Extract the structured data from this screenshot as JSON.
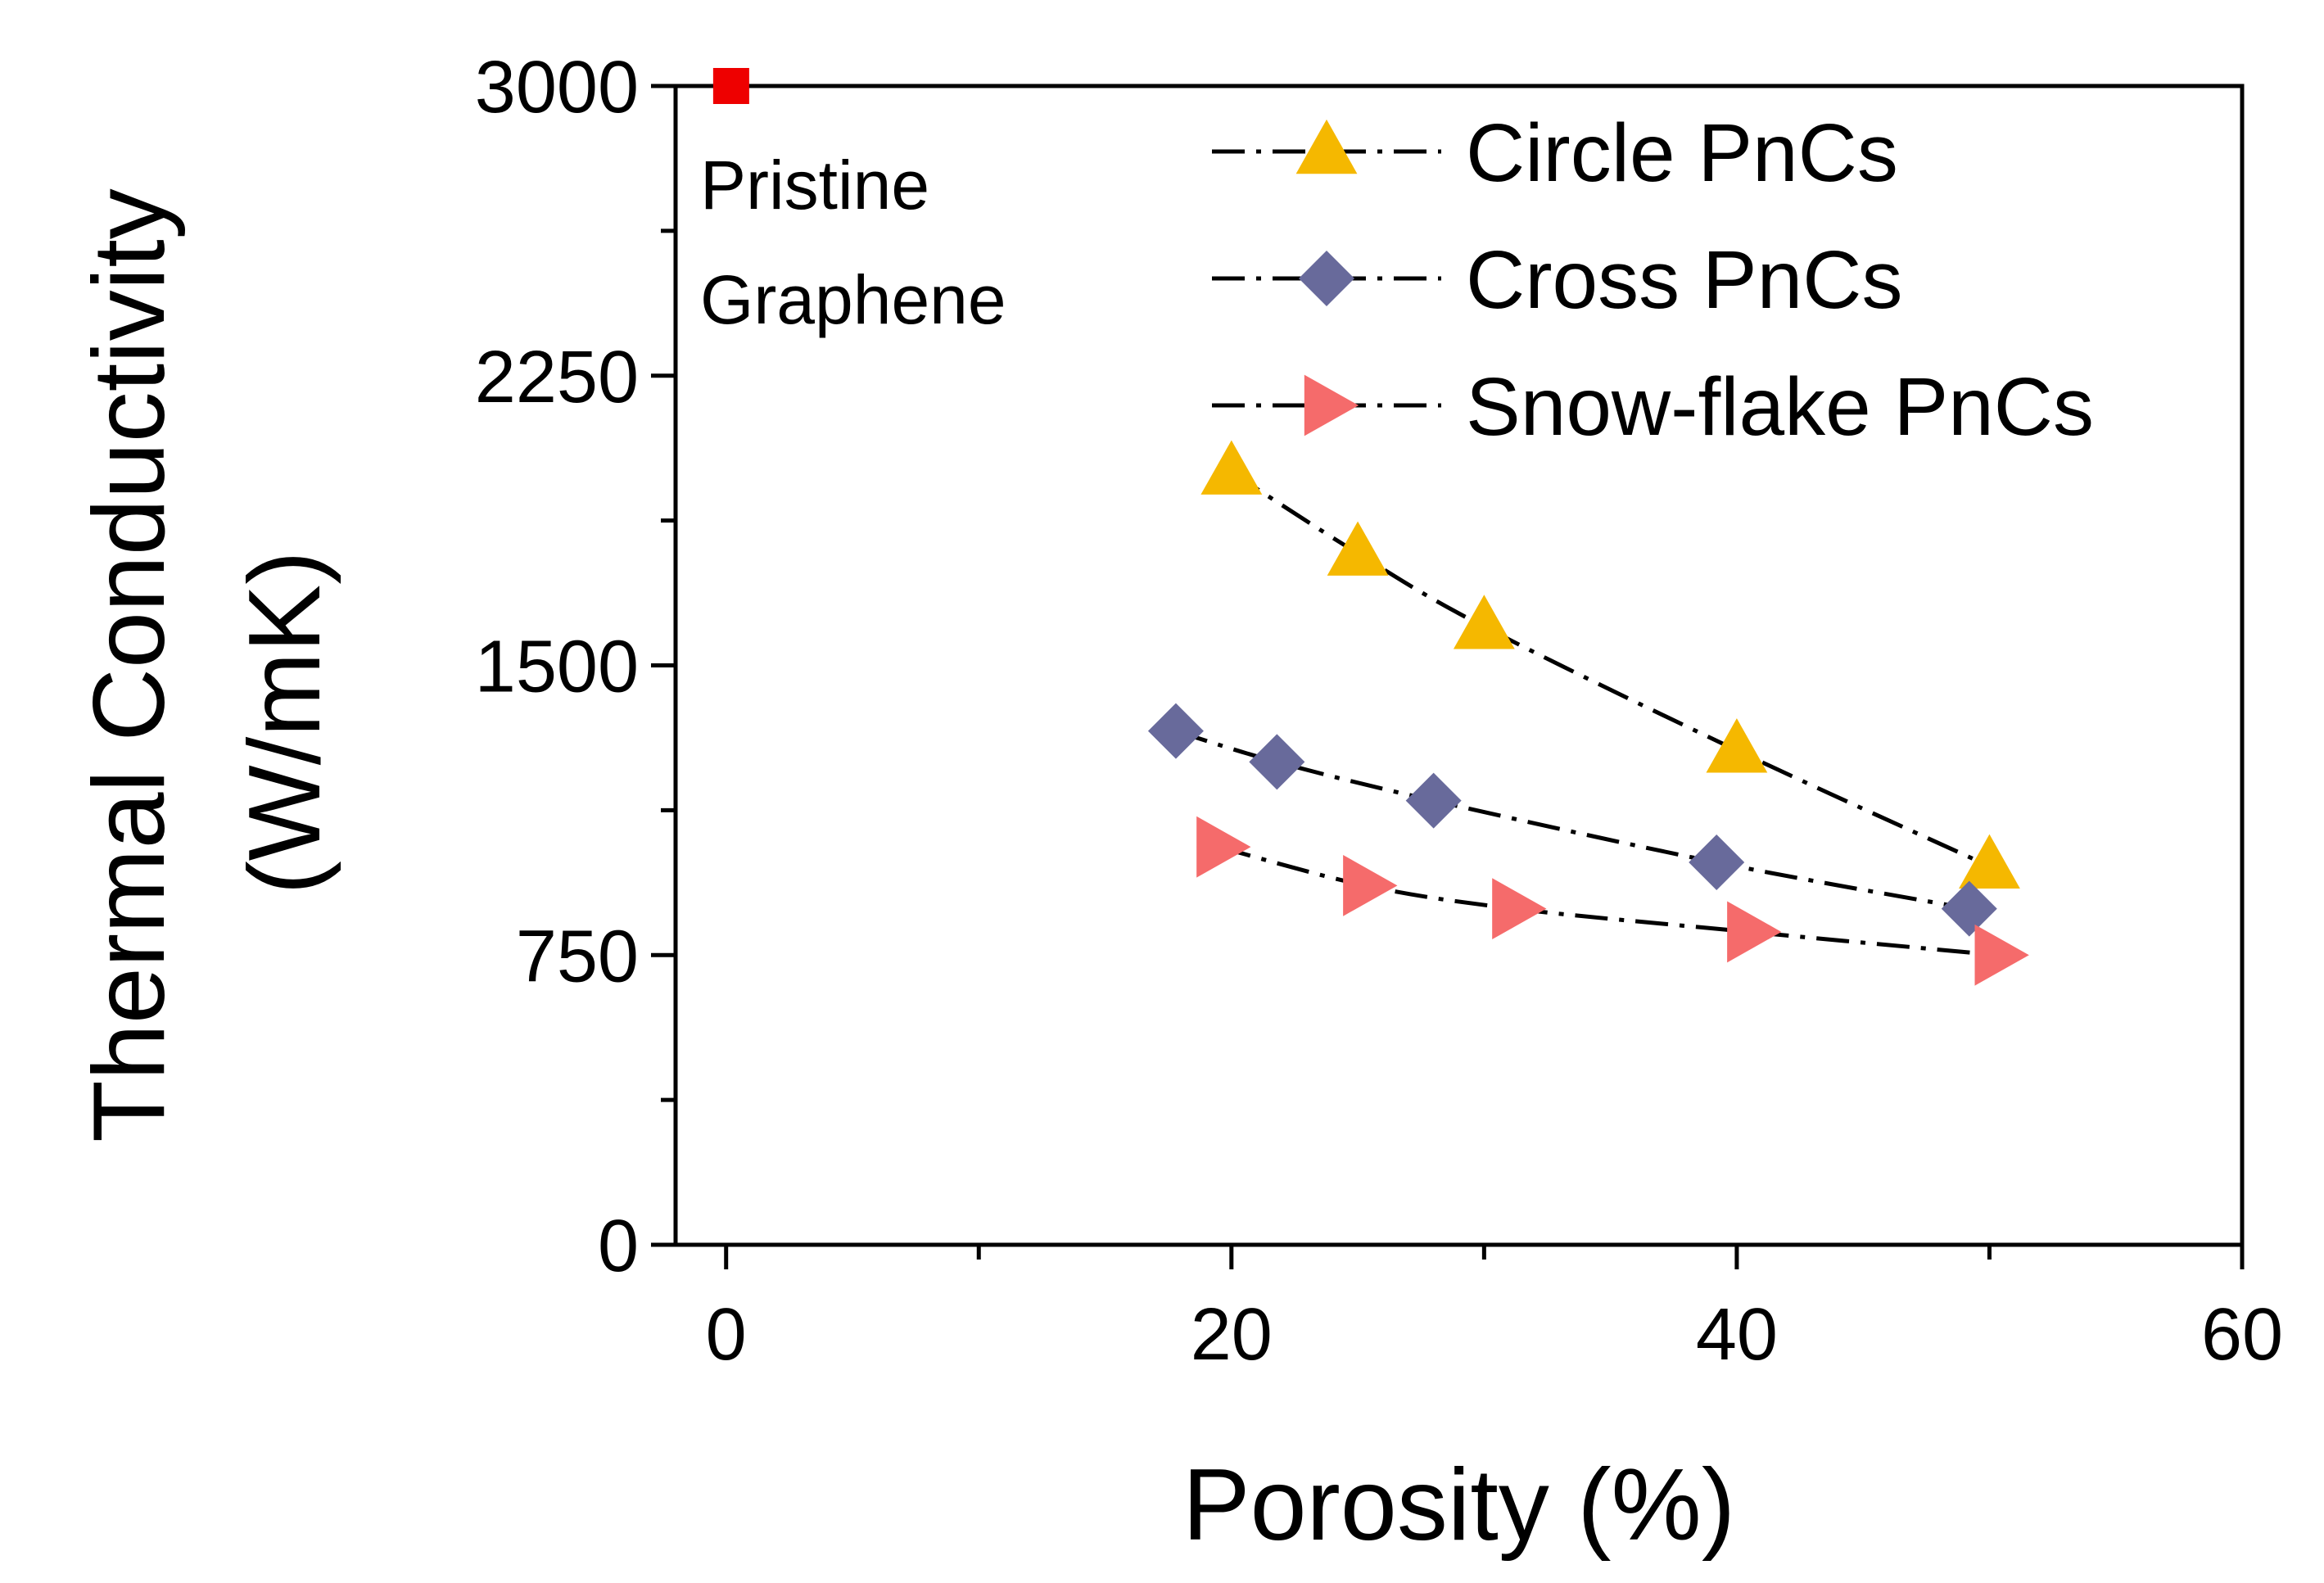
{
  "chart_data": {
    "type": "scatter",
    "xlabel": "Porosity (%)",
    "ylabel": [
      "Thermal Conductivity",
      "(W/mK)"
    ],
    "xlim": [
      -2,
      60
    ],
    "ylim": [
      0,
      3000
    ],
    "xticks": [
      0,
      20,
      40,
      60
    ],
    "yticks": [
      0,
      750,
      1500,
      2250,
      3000
    ],
    "grid": false,
    "legend_position": "top-right",
    "annotation": {
      "lines": [
        "Pristine",
        "Graphene"
      ],
      "x": 0.2,
      "y": 3000,
      "color": "#ee0000"
    },
    "series": [
      {
        "name": "Circle PnCs",
        "marker": "triangle-up",
        "color": "#f5b800",
        "x": [
          20,
          25,
          30,
          40,
          50
        ],
        "y": [
          2000,
          1790,
          1600,
          1280,
          980
        ]
      },
      {
        "name": "Cross PnCs",
        "marker": "diamond",
        "color": "#686a9b",
        "x": [
          17.8,
          21.8,
          28,
          39.2,
          49.2
        ],
        "y": [
          1330,
          1250,
          1150,
          990,
          870
        ]
      },
      {
        "name": "Snow-flake PnCs",
        "marker": "triangle-right",
        "color": "#f56b6b",
        "x": [
          19.5,
          25.3,
          31.2,
          40.5,
          50.3
        ],
        "y": [
          1030,
          930,
          870,
          810,
          750
        ]
      }
    ]
  }
}
